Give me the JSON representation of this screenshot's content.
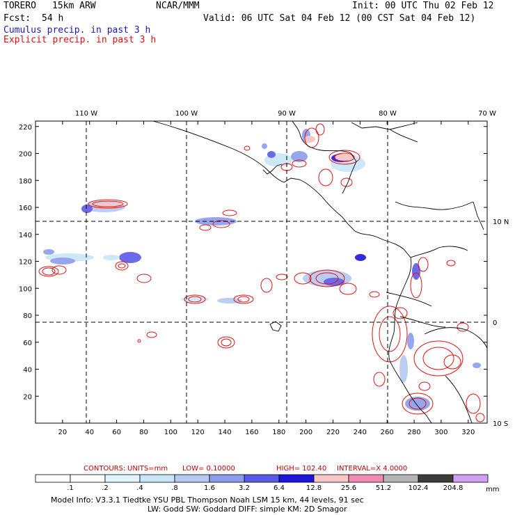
{
  "header": {
    "model": "TORERO",
    "grid": "15km ARW",
    "org": "NCAR/MMM",
    "init": "Init: 00 UTC Thu 02 Feb 12",
    "fcst_label": "Fcst:",
    "fcst_hours": "54 h",
    "valid": "Valid: 06 UTC Sat 04 Feb 12 (00 CST Sat 04 Feb 12)",
    "cumulus": "Cumulus precip. in past 3 h",
    "explicit": "Explicit precip. in past 3 h"
  },
  "lon_labels": [
    "110 W",
    "100 W",
    "90 W",
    "80 W",
    "70 W"
  ],
  "lat_labels": [
    "10 N",
    "0",
    "10 S"
  ],
  "x_ticks": [
    "20",
    "40",
    "60",
    "80",
    "100",
    "120",
    "140",
    "160",
    "180",
    "200",
    "220",
    "240",
    "260",
    "280",
    "300",
    "320"
  ],
  "y_ticks": [
    "220",
    "200",
    "180",
    "160",
    "140",
    "120",
    "100",
    "80",
    "60",
    "40",
    "20"
  ],
  "contour_info": {
    "label": "CONTOURS:",
    "units": "UNITS=mm",
    "low": "LOW= 0.10000",
    "high": "HIGH= 102.40",
    "interval": "INTERVAL=X 4.0000"
  },
  "colorbar": {
    "labels": [
      ".1",
      ".2",
      ".4",
      ".8",
      "1.6",
      "3.2",
      "6.4",
      "12.8",
      "25.6",
      "51.2",
      "102.4",
      "204.8"
    ],
    "unit": "mm",
    "colors": [
      "#ffffff",
      "#ffffff",
      "#e0f4fb",
      "#c8e6f7",
      "#b4c8f0",
      "#8c9cec",
      "#5a5ae6",
      "#1e14dc",
      "#f8c8c8",
      "#f08cb4",
      "#b4b4b4",
      "#3c3c3c",
      "#d2a0f0"
    ]
  },
  "footer": {
    "line1": "Model Info: V3.3.1    Tiedtke YSU PBL  Thompson    Noah LSM  15 km,   44 levels,   91 sec",
    "line2": "LW: Godd SW: Goddard DIFF: simple KM: 2D Smagor"
  }
}
